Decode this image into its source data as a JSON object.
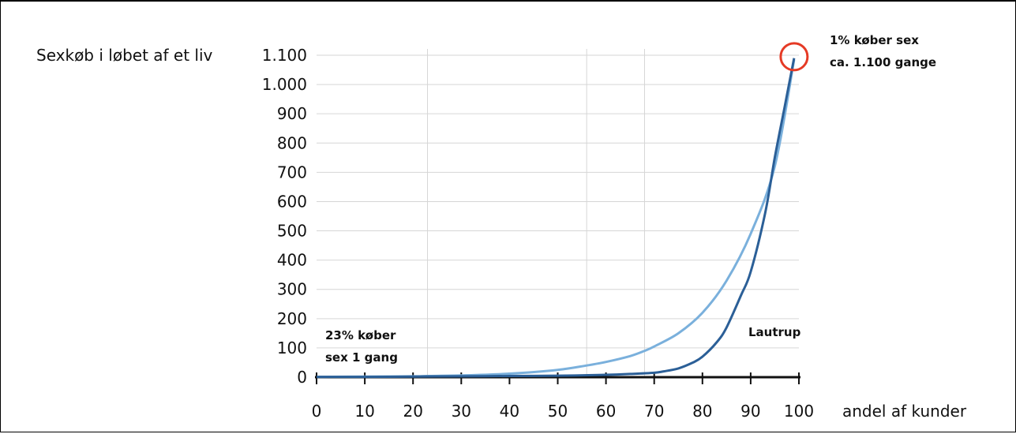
{
  "chart_data": {
    "type": "line",
    "ylabel": "Sexkøb i løbet af et liv",
    "xlabel": "andel af kunder",
    "xlim": [
      0,
      100
    ],
    "ylim": [
      0,
      1100
    ],
    "x_ticks": [
      0,
      10,
      20,
      30,
      40,
      50,
      60,
      70,
      80,
      90,
      100
    ],
    "y_ticks": [
      0,
      100,
      200,
      300,
      400,
      500,
      600,
      700,
      800,
      900,
      1000,
      1100
    ],
    "y_tick_labels": [
      "0",
      "100",
      "200",
      "300",
      "400",
      "500",
      "600",
      "700",
      "800",
      "900",
      "1.000",
      "1.100"
    ],
    "vertical_gridlines_x": [
      23,
      56,
      68
    ],
    "grid": "horizontal at each y tick",
    "series": [
      {
        "color": "#7ab0dc",
        "x": [
          0,
          10,
          20,
          23,
          30,
          40,
          50,
          56,
          60,
          65,
          68,
          70,
          75,
          80,
          85,
          90,
          95,
          99
        ],
        "y": [
          1,
          2,
          3,
          4,
          6,
          12,
          25,
          40,
          52,
          72,
          90,
          105,
          150,
          220,
          330,
          490,
          720,
          1085
        ]
      },
      {
        "name": "Lautrup",
        "color": "#2b5f97",
        "x": [
          0,
          10,
          20,
          30,
          40,
          50,
          60,
          65,
          70,
          72,
          75,
          78,
          80,
          83,
          85,
          88,
          90,
          93,
          95,
          97,
          99
        ],
        "y": [
          1,
          1,
          2,
          3,
          4,
          5,
          8,
          11,
          15,
          20,
          30,
          50,
          70,
          120,
          170,
          280,
          360,
          560,
          750,
          920,
          1090
        ]
      }
    ],
    "annotations": {
      "top_line1": "1% køber sex",
      "top_line2": "ca. 1.100 gange",
      "bottom_line1": "23% køber",
      "bottom_line2": "sex 1 gang",
      "series_label": "Lautrup"
    },
    "highlight": {
      "x": 99,
      "y": 1095,
      "color": "#e53a25"
    }
  }
}
